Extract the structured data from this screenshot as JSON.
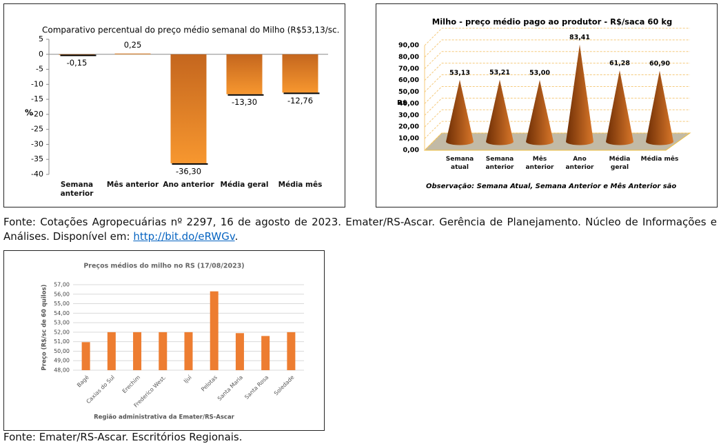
{
  "chart_data": [
    {
      "type": "bar",
      "title": "Comparativo percentual do preço médio semanal do Milho (R$53,13/sc.",
      "ylabel": "%",
      "categories": [
        "Semana anterior",
        "Mês anterior",
        "Ano anterior",
        "Média geral",
        "Média mês"
      ],
      "values": [
        -0.15,
        0.25,
        -36.3,
        -13.3,
        -12.76
      ],
      "value_labels": [
        "-0,15",
        "0,25",
        "-36,30",
        "-13,30",
        "-12,76"
      ],
      "color": "#f7972f",
      "ylim": [
        -40,
        5
      ],
      "yticks": [
        -40,
        -35,
        -30,
        -25,
        -20,
        -15,
        -10,
        -5,
        0,
        5
      ]
    },
    {
      "type": "cone",
      "title": "Milho - preço médio pago ao produtor - R$/saca 60 kg",
      "ylabel": "R$",
      "note": "Observação: Semana Atual, Semana Anterior e Mês Anterior são",
      "categories": [
        "Semana atual",
        "Semana anterior",
        "Mês anterior",
        "Ano anterior",
        "Média geral",
        "Média mês"
      ],
      "values": [
        53.13,
        53.21,
        53.0,
        83.41,
        61.28,
        60.9
      ],
      "value_labels": [
        "53,13",
        "53,21",
        "53,00",
        "83,41",
        "61,28",
        "60,90"
      ],
      "color": "#b5560f",
      "ylim": [
        0,
        90
      ],
      "yticks": [
        {
          "value": 0,
          "label": "0,00"
        },
        {
          "value": 10,
          "label": "10,00"
        },
        {
          "value": 20,
          "label": "20,00"
        },
        {
          "value": 30,
          "label": "30,00"
        },
        {
          "value": 40,
          "label": "40,00"
        },
        {
          "value": 50,
          "label": "50,00"
        },
        {
          "value": 60,
          "label": "60,00"
        },
        {
          "value": 70,
          "label": "70,00"
        },
        {
          "value": 80,
          "label": "80,00"
        },
        {
          "value": 90,
          "label": "90,00"
        }
      ],
      "grid": true
    },
    {
      "type": "bar",
      "title": "Preços médios do milho no RS (17/08/2023)",
      "ylabel": "Preço (R$/sc de 60 quilos)",
      "xlabel": "Região administrativa da Emater/RS-Ascar",
      "categories": [
        "Bagé",
        "Caxias do Sul",
        "Erechim",
        "Frederico West.",
        "Ijuí",
        "Pelotas",
        "Santa Maria",
        "Santa Rosa",
        "Soledade"
      ],
      "values": [
        50.95,
        52.0,
        52.0,
        52.0,
        52.0,
        56.3,
        51.9,
        51.6,
        52.0
      ],
      "color": "#ed7d31",
      "ylim": [
        48,
        57
      ],
      "yticks": [
        {
          "value": 48,
          "label": "48,00"
        },
        {
          "value": 49,
          "label": "49,00"
        },
        {
          "value": 50,
          "label": "50,00"
        },
        {
          "value": 51,
          "label": "51,00"
        },
        {
          "value": 52,
          "label": "52,00"
        },
        {
          "value": 53,
          "label": "53,00"
        },
        {
          "value": 54,
          "label": "54,00"
        },
        {
          "value": 55,
          "label": "55,00"
        },
        {
          "value": 56,
          "label": "56,00"
        },
        {
          "value": 57,
          "label": "57,00"
        }
      ],
      "grid": true
    }
  ],
  "source1": {
    "text": "Fonte: Cotações Agropecuárias nº 2297, 16 de agosto de 2023. Emater/RS-Ascar. Gerência de Planejamento. Núcleo de Informações e Análises. Disponível em:",
    "link": "http://bit.do/eRWGv",
    "end": "."
  },
  "source2": "Fonte: Emater/RS-Ascar. Escritórios Regionais."
}
